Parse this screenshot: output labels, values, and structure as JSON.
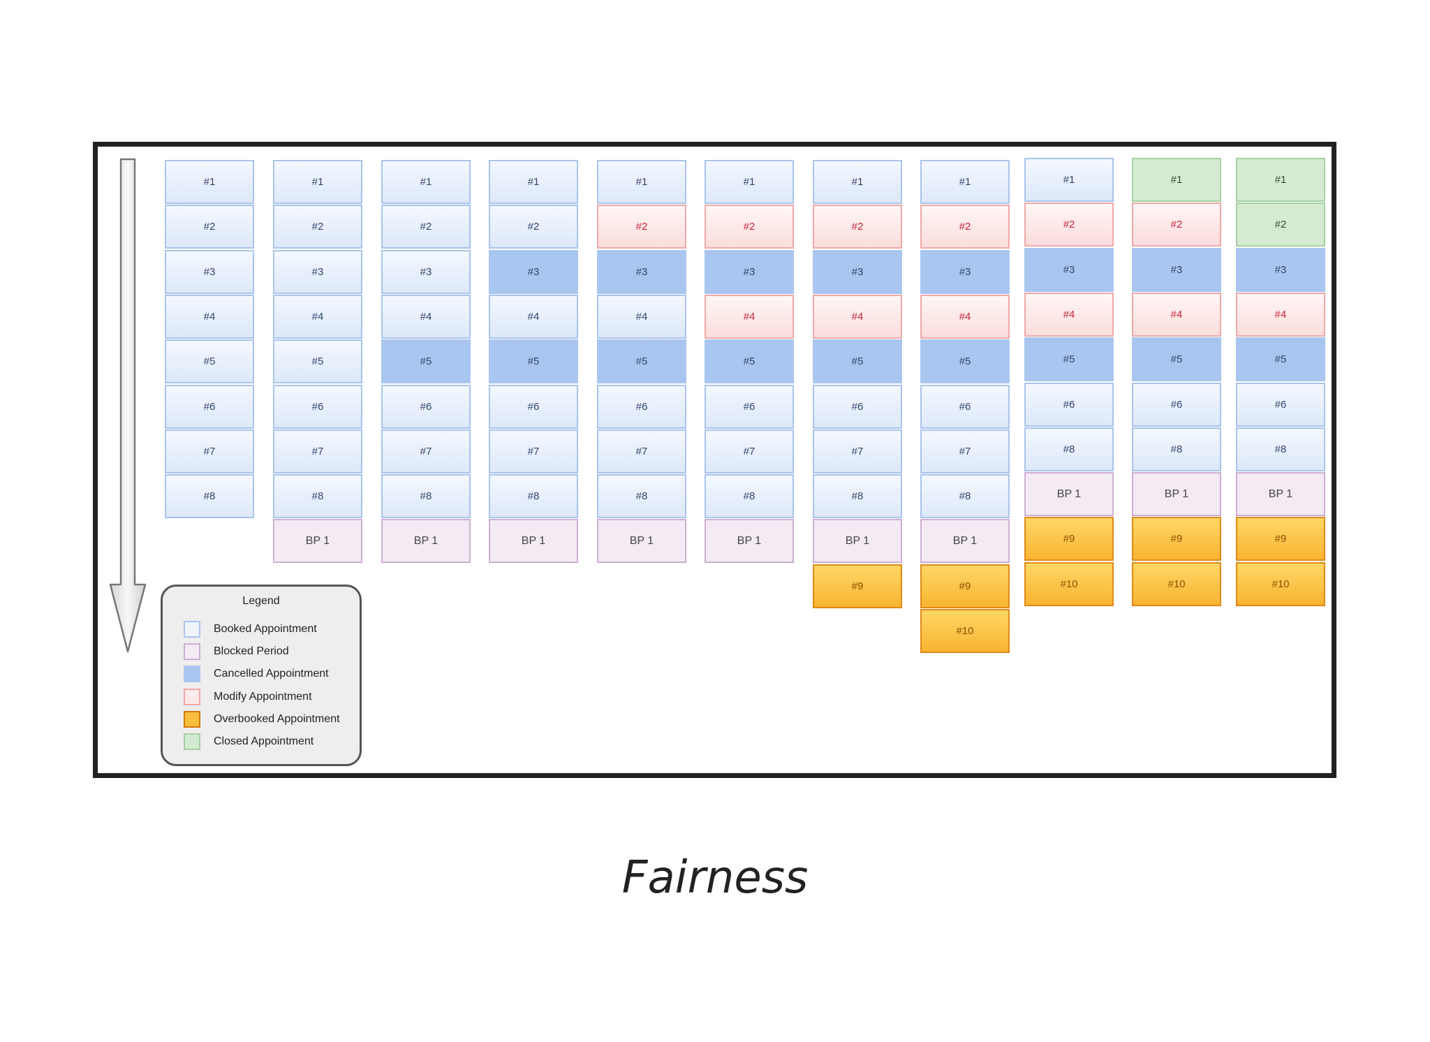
{
  "legend": {
    "title": "Legend",
    "items": [
      {
        "key": "booked",
        "label": "Booked Appointment",
        "color": "#dde8f9"
      },
      {
        "key": "blocked",
        "label": "Blocked Period",
        "color": "#f4eaf4"
      },
      {
        "key": "cancelled",
        "label": "Cancelled Appointment",
        "color": "#a9c6f0"
      },
      {
        "key": "modify",
        "label": "Modify Appointment",
        "color": "#fbdcdc"
      },
      {
        "key": "overbooked",
        "label": "Overbooked Appointment",
        "color": "#f8b431"
      },
      {
        "key": "closed",
        "label": "Closed Appointment",
        "color": "#d4ebd2"
      }
    ]
  },
  "columns": [
    {
      "cells": [
        {
          "label": "#1",
          "status": "booked"
        },
        {
          "label": "#2",
          "status": "booked"
        },
        {
          "label": "#3",
          "status": "booked"
        },
        {
          "label": "#4",
          "status": "booked"
        },
        {
          "label": "#5",
          "status": "booked"
        },
        {
          "label": "#6",
          "status": "booked"
        },
        {
          "label": "#7",
          "status": "booked"
        },
        {
          "label": "#8",
          "status": "booked"
        }
      ]
    },
    {
      "cells": [
        {
          "label": "#1",
          "status": "booked"
        },
        {
          "label": "#2",
          "status": "booked"
        },
        {
          "label": "#3",
          "status": "booked"
        },
        {
          "label": "#4",
          "status": "booked"
        },
        {
          "label": "#5",
          "status": "booked"
        },
        {
          "label": "#6",
          "status": "booked"
        },
        {
          "label": "#7",
          "status": "booked"
        },
        {
          "label": "#8",
          "status": "booked"
        },
        {
          "label": "BP 1",
          "status": "blocked"
        }
      ]
    },
    {
      "cells": [
        {
          "label": "#1",
          "status": "booked"
        },
        {
          "label": "#2",
          "status": "booked"
        },
        {
          "label": "#3",
          "status": "booked"
        },
        {
          "label": "#4",
          "status": "booked"
        },
        {
          "label": "#5",
          "status": "cancelled"
        },
        {
          "label": "#6",
          "status": "booked"
        },
        {
          "label": "#7",
          "status": "booked"
        },
        {
          "label": "#8",
          "status": "booked"
        },
        {
          "label": "BP 1",
          "status": "blocked"
        }
      ]
    },
    {
      "cells": [
        {
          "label": "#1",
          "status": "booked"
        },
        {
          "label": "#2",
          "status": "booked"
        },
        {
          "label": "#3",
          "status": "cancelled"
        },
        {
          "label": "#4",
          "status": "booked"
        },
        {
          "label": "#5",
          "status": "cancelled"
        },
        {
          "label": "#6",
          "status": "booked"
        },
        {
          "label": "#7",
          "status": "booked"
        },
        {
          "label": "#8",
          "status": "booked"
        },
        {
          "label": "BP 1",
          "status": "blocked"
        }
      ]
    },
    {
      "cells": [
        {
          "label": "#1",
          "status": "booked"
        },
        {
          "label": "#2",
          "status": "modify"
        },
        {
          "label": "#3",
          "status": "cancelled"
        },
        {
          "label": "#4",
          "status": "booked"
        },
        {
          "label": "#5",
          "status": "cancelled"
        },
        {
          "label": "#6",
          "status": "booked"
        },
        {
          "label": "#7",
          "status": "booked"
        },
        {
          "label": "#8",
          "status": "booked"
        },
        {
          "label": "BP 1",
          "status": "blocked"
        }
      ]
    },
    {
      "cells": [
        {
          "label": "#1",
          "status": "booked"
        },
        {
          "label": "#2",
          "status": "modify"
        },
        {
          "label": "#3",
          "status": "cancelled"
        },
        {
          "label": "#4",
          "status": "modify"
        },
        {
          "label": "#5",
          "status": "cancelled"
        },
        {
          "label": "#6",
          "status": "booked"
        },
        {
          "label": "#7",
          "status": "booked"
        },
        {
          "label": "#8",
          "status": "booked"
        },
        {
          "label": "BP 1",
          "status": "blocked"
        }
      ]
    },
    {
      "cells": [
        {
          "label": "#1",
          "status": "booked"
        },
        {
          "label": "#2",
          "status": "modify"
        },
        {
          "label": "#3",
          "status": "cancelled"
        },
        {
          "label": "#4",
          "status": "modify"
        },
        {
          "label": "#5",
          "status": "cancelled"
        },
        {
          "label": "#6",
          "status": "booked"
        },
        {
          "label": "#7",
          "status": "booked"
        },
        {
          "label": "#8",
          "status": "booked"
        },
        {
          "label": "BP 1",
          "status": "blocked"
        },
        {
          "label": "#9",
          "status": "overbooked"
        }
      ]
    },
    {
      "cells": [
        {
          "label": "#1",
          "status": "booked"
        },
        {
          "label": "#2",
          "status": "modify"
        },
        {
          "label": "#3",
          "status": "cancelled"
        },
        {
          "label": "#4",
          "status": "modify"
        },
        {
          "label": "#5",
          "status": "cancelled"
        },
        {
          "label": "#6",
          "status": "booked"
        },
        {
          "label": "#7",
          "status": "booked"
        },
        {
          "label": "#8",
          "status": "booked"
        },
        {
          "label": "BP 1",
          "status": "blocked"
        },
        {
          "label": "#9",
          "status": "overbooked"
        },
        {
          "label": "#10",
          "status": "overbooked"
        }
      ]
    },
    {
      "cells": [
        {
          "label": "#1",
          "status": "booked"
        },
        {
          "label": "#2",
          "status": "modify"
        },
        {
          "label": "#3",
          "status": "cancelled"
        },
        {
          "label": "#4",
          "status": "modify"
        },
        {
          "label": "#5",
          "status": "cancelled"
        },
        {
          "label": "#6",
          "status": "booked"
        },
        {
          "label": "#8",
          "status": "booked"
        },
        {
          "label": "BP 1",
          "status": "blocked"
        },
        {
          "label": "#9",
          "status": "overbooked"
        },
        {
          "label": "#10",
          "status": "overbooked"
        }
      ]
    },
    {
      "cells": [
        {
          "label": "#1",
          "status": "closed"
        },
        {
          "label": "#2",
          "status": "modify"
        },
        {
          "label": "#3",
          "status": "cancelled"
        },
        {
          "label": "#4",
          "status": "modify"
        },
        {
          "label": "#5",
          "status": "cancelled"
        },
        {
          "label": "#6",
          "status": "booked"
        },
        {
          "label": "#8",
          "status": "booked"
        },
        {
          "label": "BP 1",
          "status": "blocked"
        },
        {
          "label": "#9",
          "status": "overbooked"
        },
        {
          "label": "#10",
          "status": "overbooked"
        }
      ]
    },
    {
      "cells": [
        {
          "label": "#1",
          "status": "closed"
        },
        {
          "label": "#2",
          "status": "closed"
        },
        {
          "label": "#3",
          "status": "cancelled"
        },
        {
          "label": "#4",
          "status": "modify"
        },
        {
          "label": "#5",
          "status": "cancelled"
        },
        {
          "label": "#6",
          "status": "booked"
        },
        {
          "label": "#8",
          "status": "booked"
        },
        {
          "label": "BP 1",
          "status": "blocked"
        },
        {
          "label": "#9",
          "status": "overbooked"
        },
        {
          "label": "#10",
          "status": "overbooked"
        }
      ]
    }
  ],
  "caption": "Fairness"
}
